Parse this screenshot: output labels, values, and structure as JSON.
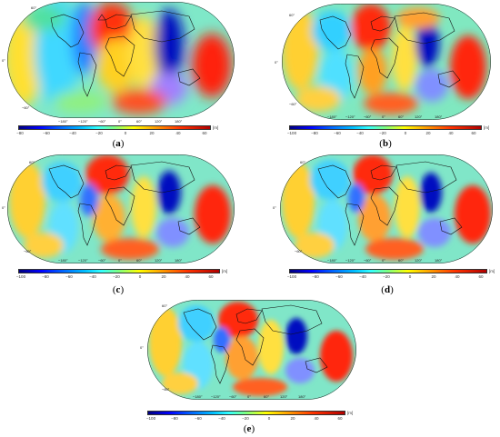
{
  "panels": [
    {
      "id": "a",
      "label_open": "(",
      "label_letter": "a",
      "label_close": ")",
      "lon_labels": [
        "−180°",
        "−120°",
        "−60°",
        "0°",
        "60°",
        "120°",
        "180°"
      ],
      "lat_labels": [
        "60°",
        "0°",
        "−60°"
      ],
      "colorbar": {
        "ticks": [
          "−80",
          "−60",
          "−40",
          "−20",
          "0",
          "20",
          "40",
          "60"
        ],
        "unit": "[m]"
      }
    },
    {
      "id": "b",
      "label_open": "(",
      "label_letter": "b",
      "label_close": ")",
      "lon_labels": [
        "−180°",
        "−120°",
        "−60°",
        "0°",
        "60°",
        "120°",
        "180°"
      ],
      "lat_labels": [
        "60°",
        "0°",
        "−60°"
      ],
      "colorbar": {
        "ticks": [
          "−100",
          "−80",
          "−60",
          "−40",
          "−20",
          "0",
          "20",
          "40",
          "60"
        ],
        "unit": "[m]"
      }
    },
    {
      "id": "c",
      "label_open": "(",
      "label_letter": "c",
      "label_close": ")",
      "lon_labels": [
        "−180°",
        "−120°",
        "−60°",
        "0°",
        "60°",
        "120°",
        "180°"
      ],
      "lat_labels": [
        "60°",
        "0°",
        "−60°"
      ],
      "colorbar": {
        "ticks": [
          "−100",
          "−80",
          "−60",
          "−40",
          "−20",
          "0",
          "20",
          "40",
          "60"
        ],
        "unit": "[m]"
      }
    },
    {
      "id": "d",
      "label_open": "(",
      "label_letter": "d",
      "label_close": ")",
      "lon_labels": [
        "−180°",
        "−120°",
        "−60°",
        "0°",
        "60°",
        "120°",
        "180°"
      ],
      "lat_labels": [
        "60°",
        "0°",
        "−60°"
      ],
      "colorbar": {
        "ticks": [
          "−100",
          "−80",
          "−60",
          "−40",
          "−20",
          "0",
          "20",
          "40",
          "60"
        ],
        "unit": "[m]"
      }
    },
    {
      "id": "e",
      "label_open": "(",
      "label_letter": "e",
      "label_close": ")",
      "lon_labels": [
        "−180°",
        "−120°",
        "−60°",
        "0°",
        "60°",
        "120°",
        "180°"
      ],
      "lat_labels": [
        "60°",
        "0°",
        "−60°"
      ],
      "colorbar": {
        "ticks": [
          "−100",
          "−80",
          "−60",
          "−40",
          "−20",
          "0",
          "20",
          "40",
          "60"
        ],
        "unit": "[m]"
      }
    }
  ],
  "colors": {
    "deep_blue": "#0000c8",
    "blue": "#2060ff",
    "cyan": "#40e0ff",
    "green": "#70f070",
    "yellow": "#ffee20",
    "orange": "#ff9a20",
    "red": "#ff2a10",
    "dark_red": "#c00000",
    "coastline": "#111111"
  }
}
